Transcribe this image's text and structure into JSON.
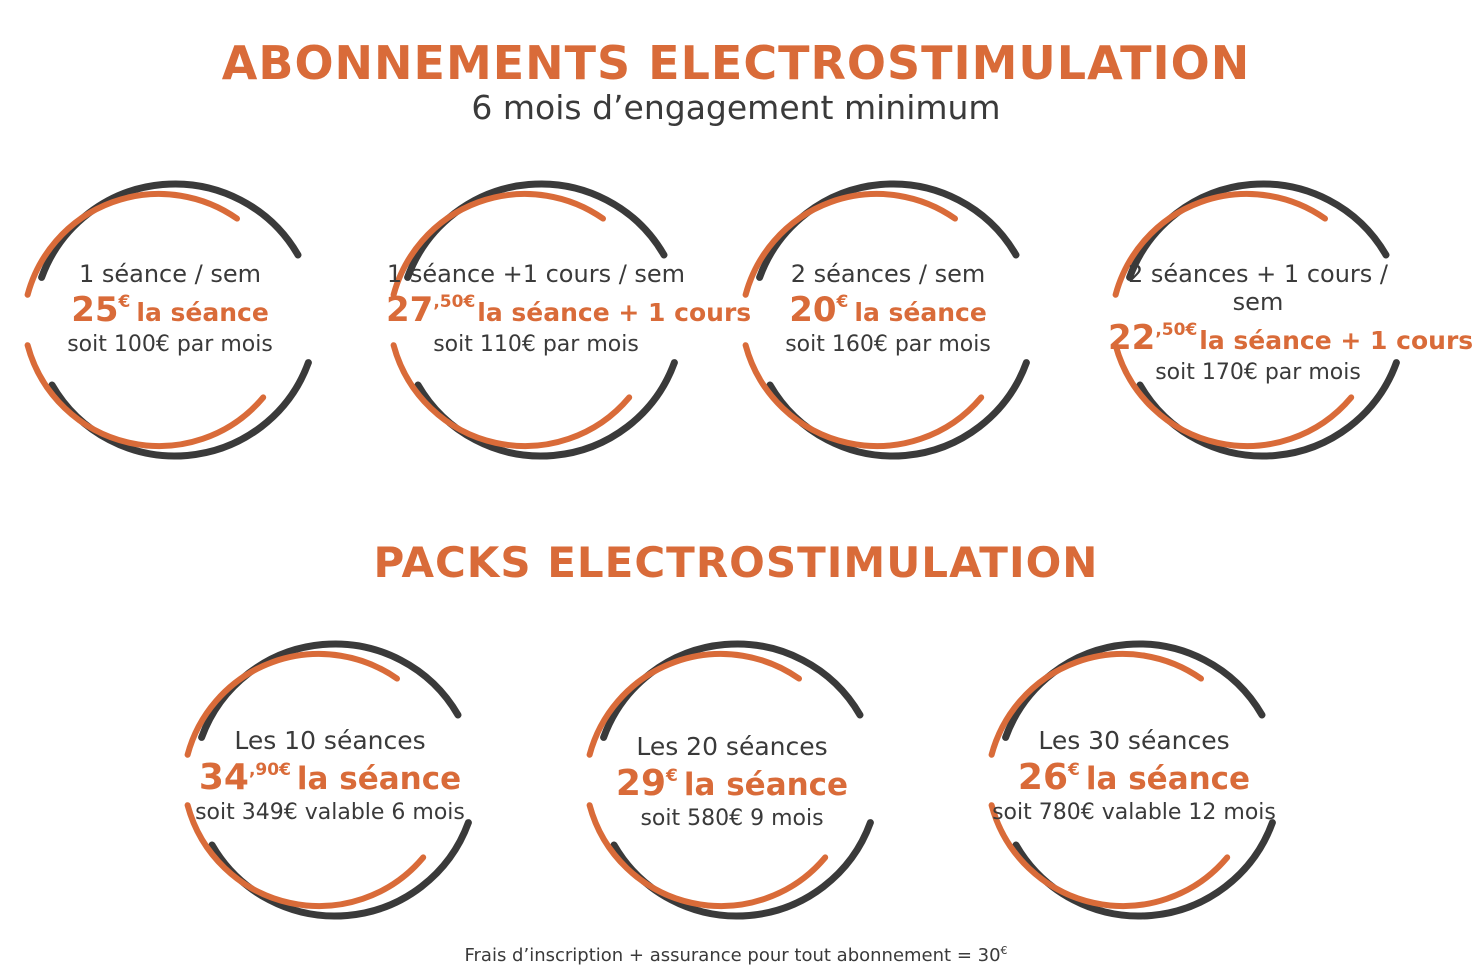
{
  "header": {
    "title": "ABONNEMENTS ELECTROSTIMULATION",
    "subtitle": "6 mois d’engagement minimum"
  },
  "subscriptions": [
    {
      "line1": "1 séance / sem",
      "price": "25",
      "price_sup": "€",
      "price_label": "la séance",
      "line3": "soit 100€ par mois"
    },
    {
      "line1": "1 séance +1 cours / sem",
      "price": "27",
      "price_sup": ",50€",
      "price_label": "la séance + 1 cours",
      "line3": "soit 110€ par mois"
    },
    {
      "line1": "2 séances / sem",
      "price": "20",
      "price_sup": "€",
      "price_label": "la séance",
      "line3": "soit 160€ par mois"
    },
    {
      "line1": "2 séances + 1 cours / sem",
      "price": "22",
      "price_sup": ",50€",
      "price_label": "la séance + 1 cours",
      "line3": "soit 170€ par mois"
    }
  ],
  "packs_title": "PACKS ELECTROSTIMULATION",
  "packs": [
    {
      "line1": "Les 10 séances",
      "price": "34",
      "price_sup": ",90€",
      "price_label": "la séance",
      "line3": "soit 349€ valable 6 mois"
    },
    {
      "line1": "Les 20 séances",
      "price": "29",
      "price_sup": "€",
      "price_label": "la séance",
      "line3": "soit 580€ 9 mois"
    },
    {
      "line1": "Les 30 séances",
      "price": "26",
      "price_sup": "€",
      "price_label": "la séance",
      "line3": "soit 780€ valable 12 mois"
    }
  ],
  "footer": {
    "text": "Frais d’inscription + assurance pour tout abonnement = 30",
    "sup": "€"
  },
  "colors": {
    "accent": "#d96b39",
    "dark": "#3a3a3a"
  }
}
